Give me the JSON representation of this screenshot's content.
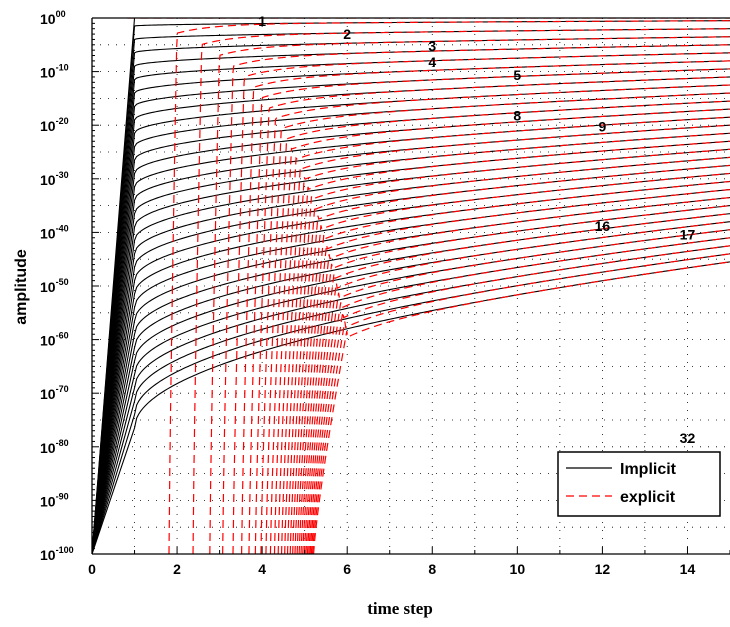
{
  "chart_data": {
    "type": "line",
    "title": "",
    "xlabel": "time step",
    "ylabel": "amplitude",
    "xlim": [
      0,
      15
    ],
    "ylim": [
      -100,
      0
    ],
    "yscale": "log10",
    "x_ticks": [
      0,
      2,
      4,
      6,
      8,
      10,
      12,
      14
    ],
    "x_tick_labels": [
      "0",
      "2",
      "4",
      "6",
      "8",
      "10",
      "12",
      "14"
    ],
    "y_ticks": [
      0,
      -10,
      -20,
      -30,
      -40,
      -50,
      -60,
      -70,
      -80,
      -90,
      -100
    ],
    "y_tick_bases": [
      "10",
      "10",
      "10",
      "10",
      "10",
      "10",
      "10",
      "10",
      "10",
      "10",
      "10"
    ],
    "y_tick_exponents": [
      "00",
      "-10",
      "-20",
      "-30",
      "-40",
      "-50",
      "-60",
      "-70",
      "-80",
      "-90",
      "-100"
    ],
    "grid": true,
    "grid_style": "dotted",
    "legend_position": "bottom-right",
    "series": [
      {
        "name": "Implicit",
        "color": "#000000",
        "dash": "solid"
      },
      {
        "name": "explicit",
        "color": "#ff0000",
        "dash": "dashed"
      }
    ],
    "curve_family": {
      "count": 32,
      "floor": -100,
      "implicit_log10_amplitude_at_step_1": [
        0,
        -1.5,
        -4,
        -6.5,
        -9,
        -11.5,
        -14,
        -16.5,
        -19,
        -21.5,
        -24,
        -26.5,
        -29,
        -31.5,
        -34,
        -36.5,
        -39,
        -41.5,
        -44,
        -46.5,
        -49,
        -51.5,
        -54,
        -56.5,
        -59,
        -61.5,
        -64,
        -66.5,
        -69,
        -71.5,
        -74,
        -76.5
      ],
      "implicit_log10_amplitude_at_step_15": [
        0,
        -0.5,
        -2,
        -3.5,
        -5,
        -6.5,
        -8,
        -9.5,
        -11,
        -12.5,
        -14,
        -15.5,
        -17,
        -18.5,
        -20,
        -21.5,
        -23,
        -24.5,
        -26,
        -27.5,
        -29,
        -30.5,
        -32,
        -33.5,
        -35,
        -36.5,
        -38,
        -39.5,
        -41,
        -42.5,
        -44,
        -45.5
      ]
    },
    "curve_labels": [
      {
        "text": "1",
        "x": 4,
        "y": -0.6
      },
      {
        "text": "2",
        "x": 6,
        "y": -3
      },
      {
        "text": "3",
        "x": 8,
        "y": -5.2
      },
      {
        "text": "4",
        "x": 8,
        "y": -8.2
      },
      {
        "text": "5",
        "x": 10,
        "y": -10.6
      },
      {
        "text": "8",
        "x": 10,
        "y": -18.2
      },
      {
        "text": "9",
        "x": 12,
        "y": -20.2
      },
      {
        "text": "16",
        "x": 12,
        "y": -38.8
      },
      {
        "text": "17",
        "x": 14,
        "y": -40.4
      },
      {
        "text": "32",
        "x": 14,
        "y": -78.4
      }
    ]
  }
}
